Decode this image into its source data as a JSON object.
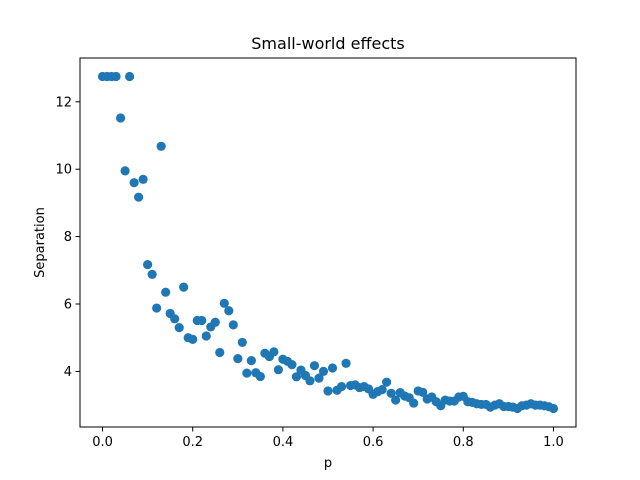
{
  "chart_data": {
    "type": "scatter",
    "title": "Small-world effects",
    "xlabel": "p",
    "ylabel": "Separation",
    "xlim": [
      -0.05,
      1.05
    ],
    "ylim": [
      2.35,
      13.3
    ],
    "xticks": [
      0.0,
      0.2,
      0.4,
      0.6,
      0.8,
      1.0
    ],
    "xtick_labels": [
      "0.0",
      "0.2",
      "0.4",
      "0.6",
      "0.8",
      "1.0"
    ],
    "yticks": [
      4,
      6,
      8,
      10,
      12
    ],
    "ytick_labels": [
      "4",
      "6",
      "8",
      "10",
      "12"
    ],
    "grid": false,
    "marker_color": "#1f77b4",
    "series": [
      {
        "x": [
          0.0,
          0.01,
          0.02,
          0.03,
          0.04,
          0.05,
          0.06,
          0.07,
          0.08,
          0.09,
          0.1,
          0.11,
          0.12,
          0.13,
          0.14,
          0.15,
          0.16,
          0.17,
          0.18,
          0.19,
          0.2,
          0.21,
          0.22,
          0.23,
          0.24,
          0.25,
          0.26,
          0.27,
          0.28,
          0.29,
          0.3,
          0.31,
          0.32,
          0.33,
          0.34,
          0.35,
          0.36,
          0.37,
          0.38,
          0.39,
          0.4,
          0.41,
          0.42,
          0.43,
          0.44,
          0.45,
          0.46,
          0.47,
          0.48,
          0.49,
          0.5,
          0.51,
          0.52,
          0.53,
          0.54,
          0.55,
          0.56,
          0.57,
          0.58,
          0.59,
          0.6,
          0.61,
          0.62,
          0.63,
          0.64,
          0.65,
          0.66,
          0.67,
          0.68,
          0.69,
          0.7,
          0.71,
          0.72,
          0.73,
          0.74,
          0.75,
          0.76,
          0.77,
          0.78,
          0.79,
          0.8,
          0.81,
          0.82,
          0.83,
          0.84,
          0.85,
          0.86,
          0.87,
          0.88,
          0.89,
          0.9,
          0.91,
          0.92,
          0.93,
          0.94,
          0.95,
          0.96,
          0.97,
          0.98,
          0.99,
          1.0
        ],
        "y": [
          12.75,
          12.75,
          12.75,
          12.75,
          11.52,
          9.95,
          12.75,
          9.6,
          9.17,
          9.7,
          7.17,
          6.88,
          5.88,
          10.68,
          6.35,
          5.72,
          5.56,
          5.3,
          6.5,
          5.0,
          4.95,
          5.51,
          5.51,
          5.05,
          5.32,
          5.46,
          4.56,
          6.02,
          5.8,
          5.38,
          4.38,
          4.86,
          3.95,
          4.32,
          3.96,
          3.85,
          4.54,
          4.44,
          4.58,
          4.05,
          4.36,
          4.3,
          4.2,
          3.84,
          4.04,
          3.88,
          3.72,
          4.17,
          3.8,
          4.0,
          3.42,
          4.1,
          3.44,
          3.55,
          4.24,
          3.58,
          3.6,
          3.52,
          3.55,
          3.48,
          3.32,
          3.4,
          3.46,
          3.68,
          3.35,
          3.15,
          3.37,
          3.27,
          3.22,
          3.06,
          3.42,
          3.38,
          3.18,
          3.24,
          3.1,
          2.98,
          3.15,
          3.12,
          3.12,
          3.24,
          3.26,
          3.1,
          3.08,
          3.04,
          3.02,
          3.02,
          2.94,
          3.0,
          3.04,
          2.96,
          2.96,
          2.94,
          2.9,
          2.98,
          3.0,
          3.04,
          3.0,
          3.0,
          2.98,
          2.95,
          2.9
        ]
      }
    ]
  }
}
